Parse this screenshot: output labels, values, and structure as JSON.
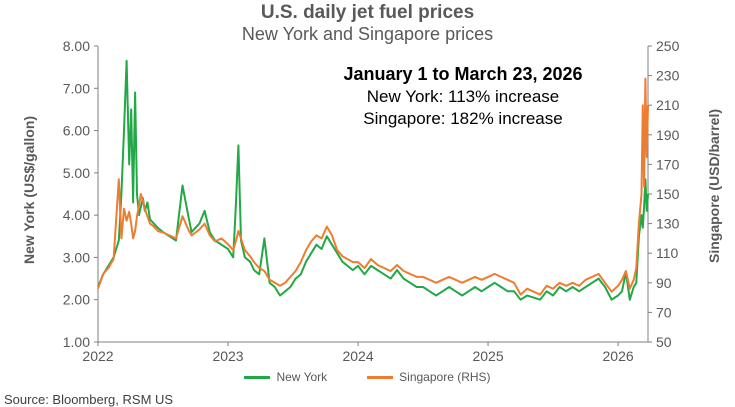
{
  "title": "U.S. daily jet fuel prices",
  "subtitle": "New York and Singapore prices",
  "annotation": {
    "headline": "January 1 to March 23, 2026",
    "line1": "New York: 113% increase",
    "line2": "Singapore: 182% increase"
  },
  "source_text": "Source: Bloomberg, RSM US",
  "colors": {
    "new_york": "#22A846",
    "singapore": "#ED7D31",
    "axis": "#7f7f7f"
  },
  "chart_data": {
    "type": "line",
    "title": "U.S. daily jet fuel prices",
    "subtitle": "New York and Singapore prices",
    "ylabel": "New York (US$/gallon)",
    "y2label": "Singapore (USD/barrel)",
    "ylim": [
      1.0,
      8.0
    ],
    "y2lim": [
      50,
      250
    ],
    "xlim": [
      2022.0,
      2026.23
    ],
    "xticks": [
      "2022",
      "2023",
      "2024",
      "2025",
      "2026"
    ],
    "yticks": [
      "1.00",
      "2.00",
      "3.00",
      "4.00",
      "5.00",
      "6.00",
      "7.00",
      "8.00"
    ],
    "y2ticks": [
      "50",
      "70",
      "90",
      "110",
      "130",
      "150",
      "170",
      "190",
      "210",
      "230",
      "250"
    ],
    "grid": false,
    "legend_position": "bottom",
    "series": [
      {
        "name": "New York",
        "axis": "left",
        "x": [
          2022.0,
          2022.04,
          2022.08,
          2022.12,
          2022.16,
          2022.18,
          2022.2,
          2022.22,
          2022.24,
          2022.255,
          2022.27,
          2022.285,
          2022.3,
          2022.315,
          2022.33,
          2022.345,
          2022.36,
          2022.38,
          2022.4,
          2022.43,
          2022.46,
          2022.5,
          2022.55,
          2022.6,
          2022.65,
          2022.7,
          2022.72,
          2022.75,
          2022.78,
          2022.82,
          2022.86,
          2022.9,
          2022.95,
          2023.0,
          2023.04,
          2023.06,
          2023.08,
          2023.1,
          2023.13,
          2023.17,
          2023.2,
          2023.24,
          2023.28,
          2023.32,
          2023.36,
          2023.4,
          2023.44,
          2023.48,
          2023.52,
          2023.56,
          2023.6,
          2023.64,
          2023.68,
          2023.72,
          2023.76,
          2023.8,
          2023.84,
          2023.88,
          2023.92,
          2023.96,
          2024.0,
          2024.05,
          2024.1,
          2024.15,
          2024.2,
          2024.25,
          2024.3,
          2024.35,
          2024.4,
          2024.45,
          2024.5,
          2024.55,
          2024.6,
          2024.65,
          2024.7,
          2024.75,
          2024.8,
          2024.85,
          2024.9,
          2024.95,
          2025.0,
          2025.05,
          2025.1,
          2025.15,
          2025.2,
          2025.25,
          2025.3,
          2025.35,
          2025.4,
          2025.45,
          2025.5,
          2025.55,
          2025.6,
          2025.65,
          2025.7,
          2025.75,
          2025.8,
          2025.85,
          2025.9,
          2025.95,
          2026.0,
          2026.03,
          2026.06,
          2026.09,
          2026.12,
          2026.14,
          2026.16,
          2026.18,
          2026.19,
          2026.2,
          2026.21,
          2026.22,
          2026.23
        ],
        "values": [
          2.3,
          2.6,
          2.8,
          3.0,
          3.4,
          4.5,
          6.0,
          7.65,
          5.2,
          6.5,
          4.3,
          6.9,
          4.5,
          4.0,
          4.2,
          4.4,
          4.1,
          4.3,
          3.9,
          3.8,
          3.7,
          3.6,
          3.5,
          3.4,
          4.7,
          3.9,
          3.6,
          3.7,
          3.8,
          4.1,
          3.6,
          3.4,
          3.3,
          3.2,
          3.0,
          4.2,
          5.65,
          3.4,
          3.0,
          2.9,
          2.7,
          2.6,
          3.45,
          2.4,
          2.3,
          2.1,
          2.2,
          2.3,
          2.5,
          2.6,
          2.9,
          3.1,
          3.3,
          3.2,
          3.5,
          3.3,
          3.1,
          2.9,
          2.8,
          2.7,
          2.8,
          2.6,
          2.8,
          2.7,
          2.6,
          2.5,
          2.7,
          2.5,
          2.4,
          2.3,
          2.3,
          2.2,
          2.1,
          2.2,
          2.3,
          2.2,
          2.1,
          2.2,
          2.3,
          2.2,
          2.3,
          2.4,
          2.3,
          2.2,
          2.2,
          2.0,
          2.1,
          2.05,
          2.0,
          2.2,
          2.1,
          2.3,
          2.2,
          2.3,
          2.2,
          2.3,
          2.4,
          2.5,
          2.3,
          2.0,
          2.1,
          2.2,
          2.65,
          2.0,
          2.3,
          2.4,
          3.5,
          4.0,
          3.7,
          4.2,
          4.85,
          4.1,
          4.5
        ]
      },
      {
        "name": "Singapore (RHS)",
        "axis": "right",
        "x": [
          2022.0,
          2022.04,
          2022.08,
          2022.12,
          2022.16,
          2022.18,
          2022.2,
          2022.22,
          2022.24,
          2022.255,
          2022.27,
          2022.285,
          2022.3,
          2022.315,
          2022.33,
          2022.345,
          2022.36,
          2022.38,
          2022.4,
          2022.43,
          2022.46,
          2022.5,
          2022.55,
          2022.6,
          2022.65,
          2022.7,
          2022.72,
          2022.75,
          2022.78,
          2022.82,
          2022.86,
          2022.9,
          2022.95,
          2023.0,
          2023.04,
          2023.06,
          2023.08,
          2023.1,
          2023.13,
          2023.17,
          2023.2,
          2023.24,
          2023.28,
          2023.32,
          2023.36,
          2023.4,
          2023.44,
          2023.48,
          2023.52,
          2023.56,
          2023.6,
          2023.64,
          2023.68,
          2023.72,
          2023.76,
          2023.8,
          2023.84,
          2023.88,
          2023.92,
          2023.96,
          2024.0,
          2024.05,
          2024.1,
          2024.15,
          2024.2,
          2024.25,
          2024.3,
          2024.35,
          2024.4,
          2024.45,
          2024.5,
          2024.55,
          2024.6,
          2024.65,
          2024.7,
          2024.75,
          2024.8,
          2024.85,
          2024.9,
          2024.95,
          2025.0,
          2025.05,
          2025.1,
          2025.15,
          2025.2,
          2025.25,
          2025.3,
          2025.35,
          2025.4,
          2025.45,
          2025.5,
          2025.55,
          2025.6,
          2025.65,
          2025.7,
          2025.75,
          2025.8,
          2025.85,
          2025.9,
          2025.95,
          2026.0,
          2026.03,
          2026.06,
          2026.09,
          2026.12,
          2026.14,
          2026.16,
          2026.18,
          2026.19,
          2026.2,
          2026.21,
          2026.22,
          2026.23
        ],
        "values": [
          86,
          96,
          100,
          106,
          160,
          120,
          140,
          132,
          138,
          130,
          120,
          125,
          135,
          142,
          150,
          145,
          140,
          135,
          130,
          128,
          125,
          124,
          122,
          120,
          135,
          125,
          122,
          124,
          126,
          130,
          122,
          118,
          120,
          116,
          112,
          118,
          125,
          120,
          112,
          108,
          104,
          100,
          98,
          92,
          90,
          88,
          90,
          94,
          98,
          104,
          112,
          118,
          122,
          120,
          128,
          122,
          112,
          108,
          106,
          104,
          104,
          100,
          106,
          102,
          100,
          98,
          102,
          98,
          96,
          94,
          94,
          92,
          90,
          92,
          94,
          92,
          90,
          92,
          94,
          92,
          94,
          96,
          94,
          92,
          90,
          82,
          86,
          84,
          82,
          88,
          86,
          90,
          88,
          90,
          88,
          92,
          94,
          96,
          90,
          84,
          88,
          92,
          98,
          86,
          92,
          100,
          130,
          150,
          210,
          155,
          228,
          175,
          210
        ]
      }
    ]
  },
  "legend": [
    {
      "label": "New York",
      "color": "#22A846"
    },
    {
      "label": "Singapore (RHS)",
      "color": "#ED7D31"
    }
  ]
}
